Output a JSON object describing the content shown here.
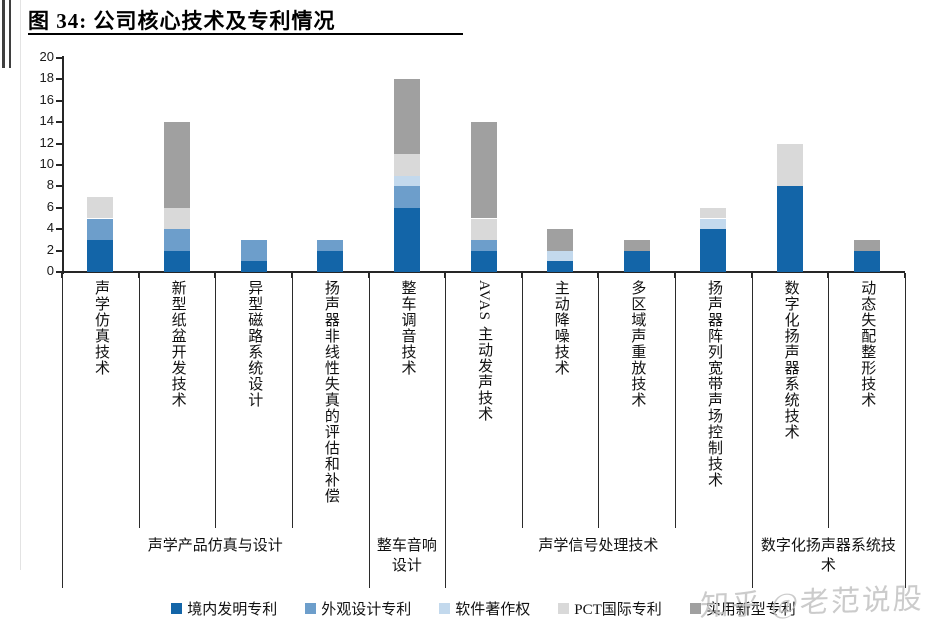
{
  "page": {
    "title": "图 34: 公司核心技术及专利情况",
    "watermark": "知乎 @老范说股"
  },
  "chart_data": {
    "type": "bar",
    "stacked": true,
    "title": "图 34: 公司核心技术及专利情况",
    "ylim": [
      0,
      20
    ],
    "ytick_step": 2,
    "grid": false,
    "legend_position": "bottom",
    "categories": [
      "声学仿真技术",
      "新型纸盆开发技术",
      "异型磁路系统设计",
      "扬声器非线性失真的评估和补偿",
      "整车调音技术",
      "AVAS 主动发声技术",
      "主动降噪技术",
      "多区域声重放技术",
      "扬声器阵列宽带声场控制技术",
      "数字化扬声器系统技术",
      "动态失配整形技术"
    ],
    "series": [
      {
        "name": "境内发明专利",
        "color": "#1365a8",
        "values": [
          3,
          2,
          1,
          2,
          6,
          2,
          1,
          2,
          4,
          8,
          2
        ]
      },
      {
        "name": "外观设计专利",
        "color": "#6d9ecb",
        "values": [
          2,
          2,
          2,
          1,
          2,
          1,
          0,
          0,
          0,
          0,
          0
        ]
      },
      {
        "name": "软件著作权",
        "color": "#c3d9ed",
        "values": [
          0,
          0,
          0,
          0,
          1,
          0,
          1,
          0,
          1,
          0,
          0
        ]
      },
      {
        "name": "PCT国际专利",
        "color": "#d9d9d9",
        "values": [
          2,
          2,
          0,
          0,
          2,
          2,
          0,
          0,
          1,
          4,
          0
        ]
      },
      {
        "name": "实用新型专利",
        "color": "#a0a0a0",
        "values": [
          0,
          8,
          0,
          0,
          7,
          9,
          2,
          1,
          0,
          0,
          1
        ]
      }
    ],
    "totals": [
      7,
      14,
      3,
      3,
      18,
      14,
      4,
      3,
      6,
      12,
      3
    ],
    "groups": [
      {
        "label": "声学产品仿真与设计",
        "span": 4
      },
      {
        "label": "整车音响设计",
        "span": 1
      },
      {
        "label": "声学信号处理技术",
        "span": 4
      },
      {
        "label": "数字化扬声器系统技术",
        "span": 2
      }
    ],
    "colors": {
      "axis": "#262626",
      "watermark": "#c2c2c2"
    }
  }
}
